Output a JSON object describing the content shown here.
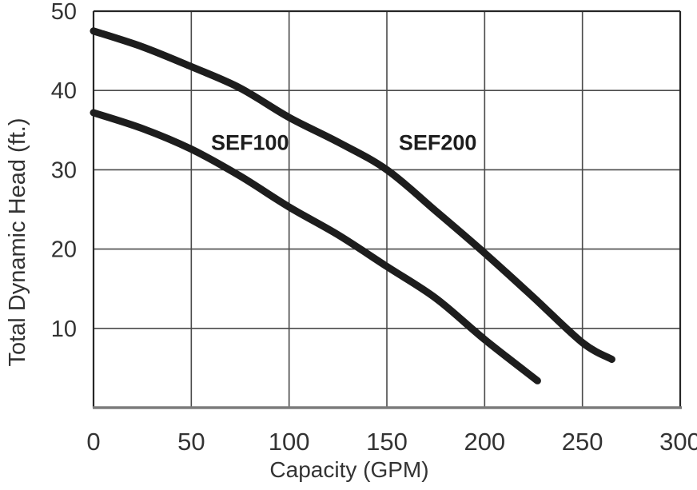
{
  "chart_data": {
    "type": "line",
    "title": "",
    "xlabel": "Capacity (GPM)",
    "ylabel": "Total Dynamic Head (ft.)",
    "xlim": [
      0,
      300
    ],
    "ylim": [
      0,
      50
    ],
    "x_ticks": [
      0,
      50,
      100,
      150,
      200,
      250,
      300
    ],
    "y_ticks": [
      10,
      20,
      30,
      40,
      50
    ],
    "grid": true,
    "legend_position": "inline-labels",
    "series": [
      {
        "name": "SEF100",
        "label": "SEF100",
        "label_at": {
          "gpm": 80,
          "head": 33.4
        },
        "points": [
          [
            0,
            37.2
          ],
          [
            25,
            35.2
          ],
          [
            50,
            32.6
          ],
          [
            75,
            29.2
          ],
          [
            100,
            25.3
          ],
          [
            125,
            21.8
          ],
          [
            150,
            17.8
          ],
          [
            175,
            13.8
          ],
          [
            200,
            8.6
          ],
          [
            227,
            3.4
          ]
        ]
      },
      {
        "name": "SEF200",
        "label": "SEF200",
        "label_at": {
          "gpm": 176,
          "head": 33.4
        },
        "points": [
          [
            0,
            47.5
          ],
          [
            25,
            45.5
          ],
          [
            50,
            43.0
          ],
          [
            75,
            40.3
          ],
          [
            100,
            36.6
          ],
          [
            125,
            33.5
          ],
          [
            150,
            30.0
          ],
          [
            175,
            24.8
          ],
          [
            200,
            19.5
          ],
          [
            225,
            13.9
          ],
          [
            250,
            8.2
          ],
          [
            265,
            6.1
          ]
        ]
      }
    ],
    "colors": {
      "background": "#ffffff",
      "curve": "#1d1d1d",
      "grid": "#4a4a4a",
      "border": "#262626",
      "baseline_border": "#7b7b7b",
      "text": "#333333"
    }
  }
}
